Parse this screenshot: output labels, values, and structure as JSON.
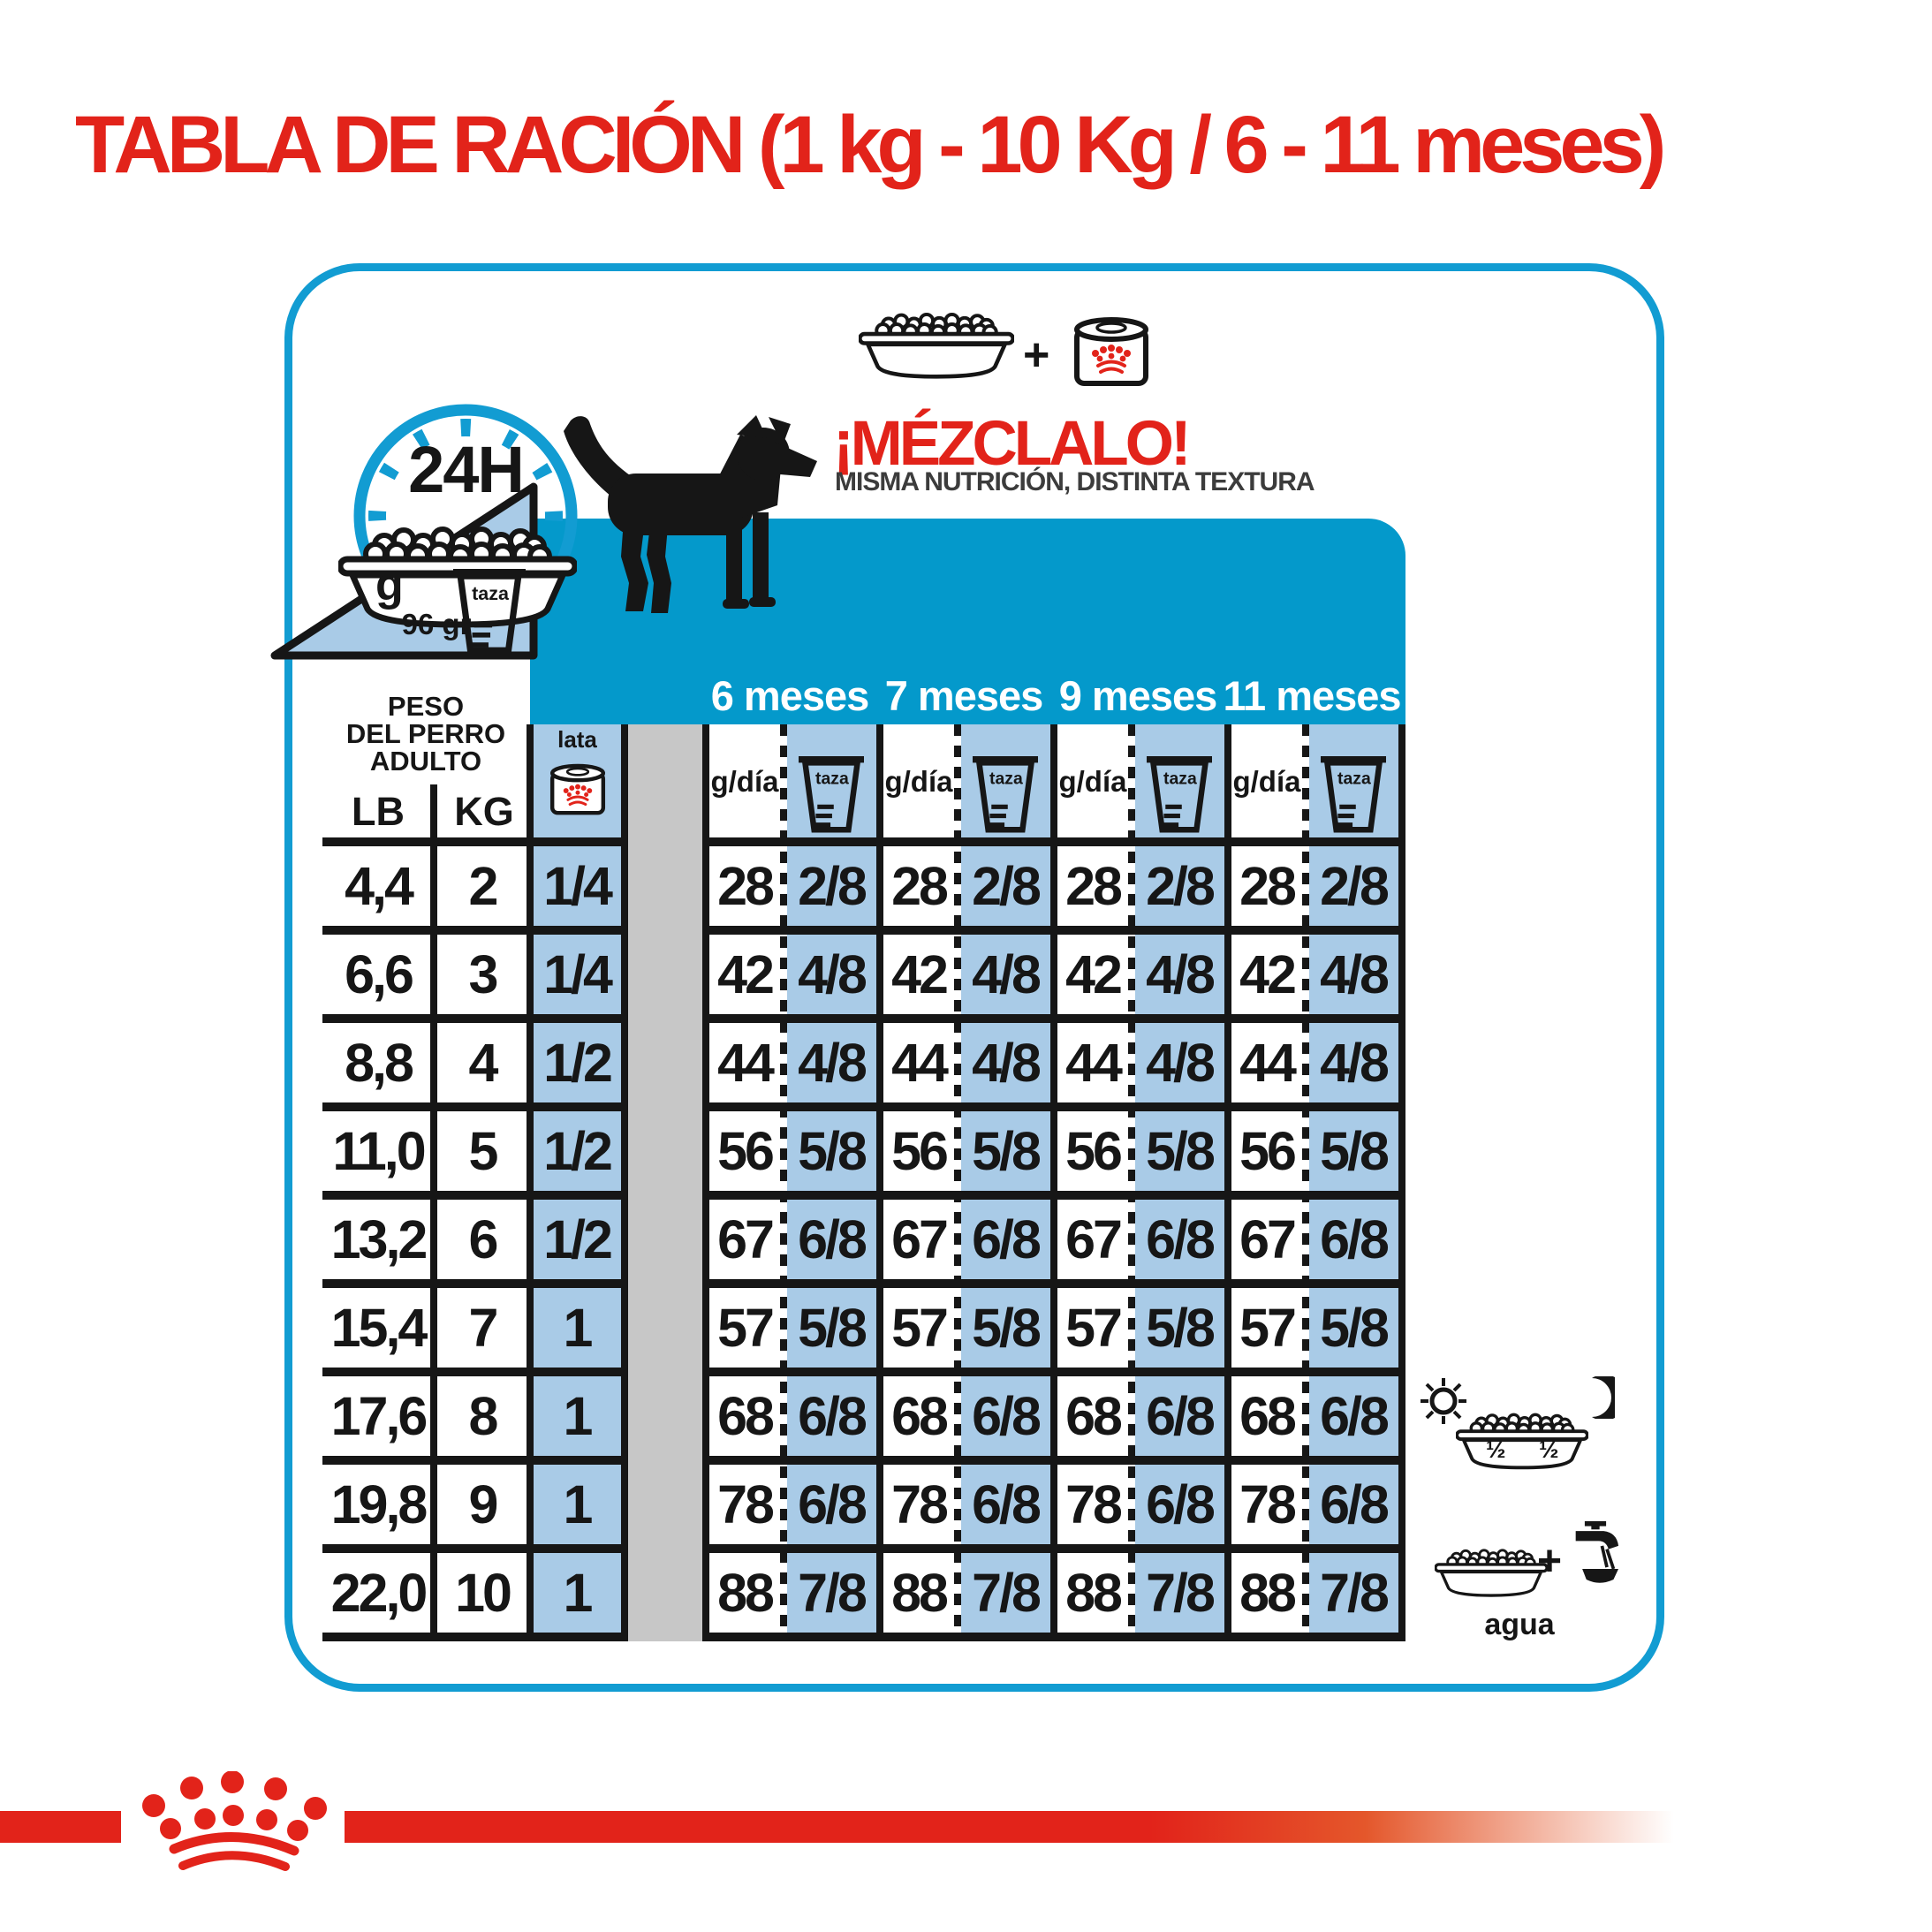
{
  "title": "TABLA DE RACIÓN (1 kg - 10 Kg / 6 - 11 meses)",
  "mix": {
    "plus": "+",
    "headline": "¡MÉZCLALO!",
    "subline": "MISMA NUTRICIÓN, DISTINTA TEXTURA"
  },
  "clock": {
    "label": "24H",
    "grams_label": "g",
    "cup_label": "taza",
    "cup_grams": "96 gr"
  },
  "table": {
    "weight_header": [
      "PESO",
      "DEL PERRO",
      "ADULTO"
    ],
    "lb_header": "LB",
    "kg_header": "KG",
    "can_header": "lata",
    "gday_header": "g/día",
    "cup_header": "taza",
    "months": [
      "6 meses",
      "7 meses",
      "9 meses",
      "11 meses"
    ],
    "rows": [
      {
        "lb": "4,4",
        "kg": "2",
        "can": "1/4",
        "gday": "28",
        "cup": "2/8"
      },
      {
        "lb": "6,6",
        "kg": "3",
        "can": "1/4",
        "gday": "42",
        "cup": "4/8"
      },
      {
        "lb": "8,8",
        "kg": "4",
        "can": "1/2",
        "gday": "44",
        "cup": "4/8"
      },
      {
        "lb": "11,0",
        "kg": "5",
        "can": "1/2",
        "gday": "56",
        "cup": "5/8"
      },
      {
        "lb": "13,2",
        "kg": "6",
        "can": "1/2",
        "gday": "67",
        "cup": "6/8"
      },
      {
        "lb": "15,4",
        "kg": "7",
        "can": "1",
        "gday": "57",
        "cup": "5/8"
      },
      {
        "lb": "17,6",
        "kg": "8",
        "can": "1",
        "gday": "68",
        "cup": "6/8"
      },
      {
        "lb": "19,8",
        "kg": "9",
        "can": "1",
        "gday": "78",
        "cup": "6/8"
      },
      {
        "lb": "22,0",
        "kg": "10",
        "can": "1",
        "gday": "88",
        "cup": "7/8"
      }
    ]
  },
  "side": {
    "half_left": "½",
    "half_right": "½",
    "plus": "+",
    "water_label": "agua"
  },
  "colors": {
    "red": "#E2231A",
    "cyan_band": "#0499CB",
    "panel_border": "#129CD2",
    "light_blue": "#A9CBE7",
    "gray": "#C7C7C7",
    "ink": "#161616"
  }
}
